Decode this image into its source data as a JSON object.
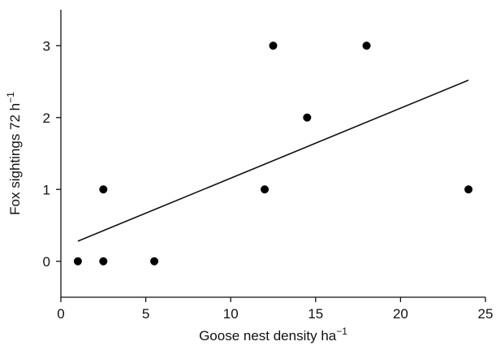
{
  "chart_data": {
    "type": "scatter",
    "title": "",
    "xlabel": "Goose nest density ha",
    "xlabel_sup": "−1",
    "ylabel": "Fox sightings 72 h",
    "ylabel_sup": "−1",
    "xlim": [
      0,
      25
    ],
    "ylim": [
      -0.5,
      3.5
    ],
    "x_ticks": [
      0,
      5,
      10,
      15,
      20,
      25
    ],
    "y_ticks": [
      0,
      1,
      2,
      3
    ],
    "x_tick_labels": [
      "0",
      "5",
      "10",
      "15",
      "20",
      "25"
    ],
    "y_tick_labels": [
      "0",
      "1",
      "2",
      "3"
    ],
    "grid": false,
    "legend": "none",
    "points": [
      {
        "x": 1.0,
        "y": 0
      },
      {
        "x": 2.5,
        "y": 0
      },
      {
        "x": 2.5,
        "y": 1
      },
      {
        "x": 5.5,
        "y": 0
      },
      {
        "x": 12.0,
        "y": 1
      },
      {
        "x": 12.5,
        "y": 3
      },
      {
        "x": 14.5,
        "y": 2
      },
      {
        "x": 18.0,
        "y": 3
      },
      {
        "x": 24.0,
        "y": 1
      }
    ],
    "trendline": {
      "x": [
        1.0,
        24.0
      ],
      "y": [
        0.28,
        2.52
      ]
    },
    "colors": {
      "points": "#000000",
      "line": "#111111"
    }
  }
}
